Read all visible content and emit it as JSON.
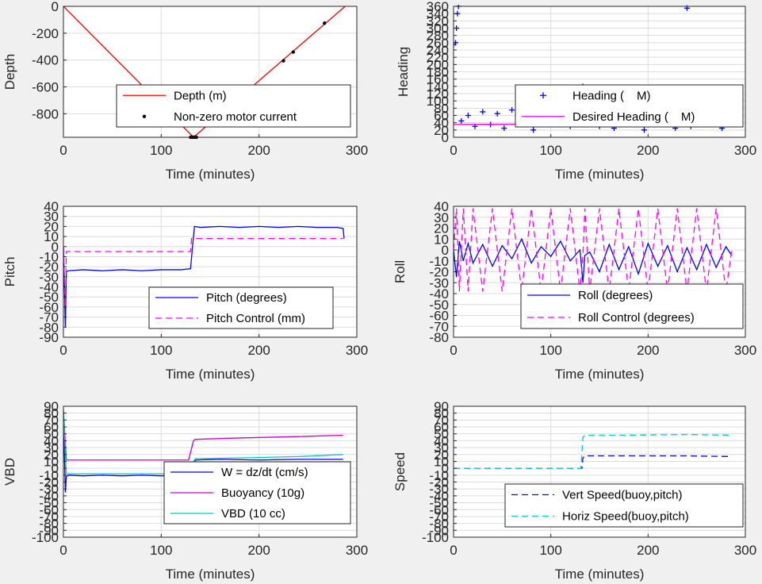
{
  "charts": [
    {
      "id": "depth",
      "type": "line",
      "xlabel": "Time (minutes)",
      "ylabel": "Depth",
      "xlim": [
        0,
        300
      ],
      "ylim": [
        -975,
        0
      ],
      "xticks": [
        0,
        100,
        200,
        300
      ],
      "yticks": [
        0,
        -200,
        -400,
        -600,
        -800
      ],
      "grid": true,
      "legend": "bottom-center",
      "series": [
        {
          "name": "Depth (m)",
          "color": "#ff0000",
          "style": "solid",
          "kind": "line",
          "x": [
            0,
            133,
            288
          ],
          "y": [
            0,
            -975,
            0
          ]
        },
        {
          "name": "Non-zero motor current",
          "color": "#000000",
          "kind": "dots",
          "x": [
            130,
            131,
            132,
            133,
            134,
            135,
            136,
            225,
            235,
            267
          ],
          "y": [
            -975,
            -975,
            -975,
            -975,
            -975,
            -975,
            -975,
            -405,
            -340,
            -125
          ]
        }
      ]
    },
    {
      "id": "heading",
      "type": "scatter",
      "xlabel": "Time (minutes)",
      "ylabel": "Heading",
      "xlim": [
        0,
        300
      ],
      "ylim": [
        0,
        360
      ],
      "xticks": [
        0,
        100,
        200,
        300
      ],
      "yticks": [
        0,
        20,
        40,
        60,
        80,
        100,
        120,
        140,
        160,
        180,
        200,
        220,
        240,
        260,
        280,
        300,
        320,
        340,
        360
      ],
      "grid": true,
      "legend": "bottom-right",
      "series": [
        {
          "name": "Heading (",
          "name_rest": "M)",
          "color": "#0000ff",
          "kind": "plus",
          "x": [
            0,
            2,
            3,
            4,
            5,
            8,
            15,
            22,
            30,
            38,
            45,
            52,
            60,
            68,
            75,
            82,
            90,
            98,
            103,
            106,
            112,
            120,
            128,
            133,
            136,
            142,
            150,
            158,
            165,
            172,
            180,
            188,
            196,
            204,
            212,
            220,
            228,
            236,
            240,
            244,
            252,
            260,
            268,
            276,
            284,
            288
          ],
          "y": [
            255,
            260,
            300,
            340,
            360,
            45,
            60,
            30,
            70,
            35,
            65,
            25,
            75,
            40,
            55,
            20,
            60,
            35,
            130,
            45,
            75,
            30,
            90,
            140,
            40,
            70,
            30,
            60,
            25,
            85,
            35,
            65,
            20,
            70,
            40,
            60,
            25,
            55,
            355,
            30,
            65,
            35,
            70,
            25,
            60,
            40
          ]
        },
        {
          "name": "Desired Heading (",
          "name_rest": "M)",
          "color": "#ff00ff",
          "kind": "line",
          "x": [
            0,
            60,
            100,
            133,
            160,
            200,
            240,
            288
          ],
          "y": [
            35,
            36,
            38,
            42,
            38,
            36,
            34,
            36
          ]
        }
      ]
    },
    {
      "id": "pitch",
      "type": "line",
      "xlabel": "Time (minutes)",
      "ylabel": "Pitch",
      "xlim": [
        0,
        300
      ],
      "ylim": [
        -90,
        40
      ],
      "xticks": [
        0,
        100,
        200,
        300
      ],
      "yticks": [
        40,
        30,
        20,
        10,
        0,
        -10,
        -20,
        -30,
        -40,
        -50,
        -60,
        -70,
        -80,
        -90
      ],
      "grid": true,
      "legend": "bottom-right",
      "series": [
        {
          "name": "Pitch (degrees)",
          "color": "#0000ff",
          "style": "solid",
          "kind": "line",
          "x": [
            0,
            1,
            2,
            3,
            5,
            20,
            40,
            60,
            80,
            100,
            120,
            130,
            132,
            134,
            140,
            160,
            180,
            200,
            220,
            240,
            260,
            280,
            286,
            287
          ],
          "y": [
            0,
            -40,
            -80,
            -25,
            -24,
            -23,
            -24,
            -23,
            -24,
            -23,
            -23,
            -22,
            0,
            20,
            19,
            20,
            19,
            20,
            19,
            20,
            19,
            19,
            18,
            8
          ]
        },
        {
          "name": "Pitch Control (mm)",
          "color": "#ff00ff",
          "style": "dash",
          "kind": "line",
          "x": [
            0,
            1,
            2,
            3,
            10,
            60,
            100,
            130,
            131,
            133,
            200,
            286
          ],
          "y": [
            0,
            -30,
            -60,
            -5,
            -5,
            -5,
            -5,
            -5,
            8,
            8,
            8,
            8
          ]
        }
      ]
    },
    {
      "id": "roll",
      "type": "line",
      "xlabel": "Time (minutes)",
      "ylabel": "Roll",
      "xlim": [
        0,
        300
      ],
      "ylim": [
        -80,
        40
      ],
      "xticks": [
        0,
        100,
        200,
        300
      ],
      "yticks": [
        40,
        30,
        20,
        10,
        0,
        -10,
        -20,
        -30,
        -40,
        -50,
        -60,
        -70,
        -80
      ],
      "grid": true,
      "legend": "bottom-right",
      "series": [
        {
          "name": "Roll (degrees)",
          "color": "#0000ff",
          "style": "solid",
          "kind": "line",
          "x": [
            0,
            3,
            6,
            10,
            15,
            20,
            30,
            40,
            50,
            60,
            70,
            80,
            90,
            100,
            110,
            120,
            130,
            133,
            135,
            140,
            150,
            160,
            170,
            180,
            190,
            200,
            210,
            220,
            230,
            240,
            250,
            260,
            270,
            280,
            286
          ],
          "y": [
            0,
            -25,
            8,
            -10,
            6,
            -12,
            5,
            -15,
            4,
            -8,
            10,
            -12,
            3,
            -6,
            8,
            -10,
            0,
            -30,
            -5,
            -2,
            -20,
            5,
            -18,
            3,
            -22,
            6,
            -15,
            4,
            -20,
            2,
            -18,
            5,
            -16,
            3,
            -5
          ]
        },
        {
          "name": "Roll Control (degrees)",
          "color": "#ff00ff",
          "style": "dash",
          "kind": "line",
          "x": [
            0,
            3,
            6,
            10,
            15,
            20,
            30,
            40,
            50,
            60,
            70,
            80,
            90,
            100,
            110,
            120,
            130,
            133,
            135,
            140,
            150,
            160,
            170,
            180,
            190,
            200,
            210,
            220,
            230,
            240,
            250,
            260,
            270,
            280,
            286
          ],
          "y": [
            0,
            38,
            -38,
            38,
            -38,
            38,
            -38,
            38,
            -38,
            38,
            -38,
            38,
            -38,
            38,
            -38,
            38,
            -38,
            -5,
            38,
            -38,
            38,
            -38,
            38,
            -38,
            38,
            -38,
            38,
            -38,
            38,
            -38,
            38,
            -38,
            38,
            -38,
            0
          ]
        }
      ]
    },
    {
      "id": "vbd",
      "type": "line",
      "xlabel": "Time (minutes)",
      "ylabel": "VBD",
      "xlim": [
        0,
        300
      ],
      "ylim": [
        -100,
        90
      ],
      "xticks": [
        0,
        100,
        200,
        300
      ],
      "yticks": [
        90,
        80,
        70,
        60,
        50,
        40,
        30,
        20,
        10,
        0,
        -10,
        -20,
        -30,
        -40,
        -50,
        -60,
        -70,
        -80,
        -90,
        -100
      ],
      "grid": true,
      "legend": "bottom-right",
      "series": [
        {
          "name": "W = dz/dt (cm/s)",
          "color": "#0000ff",
          "style": "solid",
          "kind": "line",
          "x": [
            0,
            1,
            2,
            3,
            5,
            20,
            40,
            60,
            80,
            100,
            120,
            130,
            132,
            135,
            160,
            200,
            240,
            286
          ],
          "y": [
            70,
            20,
            -35,
            -12,
            -10,
            -11,
            -10,
            -11,
            -10,
            -11,
            -10,
            -11,
            5,
            12,
            13,
            12,
            13,
            13
          ]
        },
        {
          "name": "Buoyancy (10g)",
          "color": "#cc00cc",
          "style": "solid",
          "kind": "line",
          "x": [
            0,
            1,
            3,
            5,
            60,
            100,
            128,
            133,
            135,
            180,
            240,
            286
          ],
          "y": [
            85,
            60,
            12,
            12,
            12,
            12,
            12,
            40,
            42,
            44,
            46,
            48
          ]
        },
        {
          "name": "VBD (10 cc)",
          "color": "#00cccc",
          "style": "solid",
          "kind": "line",
          "x": [
            0,
            1,
            3,
            5,
            60,
            100,
            128,
            133,
            135,
            180,
            240,
            286
          ],
          "y": [
            80,
            50,
            -8,
            -8,
            -8,
            -8,
            -8,
            10,
            14,
            15,
            17,
            20
          ]
        }
      ]
    },
    {
      "id": "speed",
      "type": "line",
      "xlabel": "Time (minutes)",
      "ylabel": "Speed",
      "xlim": [
        0,
        300
      ],
      "ylim": [
        -100,
        90
      ],
      "xticks": [
        0,
        100,
        200,
        300
      ],
      "yticks": [
        90,
        80,
        70,
        60,
        50,
        40,
        30,
        20,
        10,
        0,
        -10,
        -20,
        -30,
        -40,
        -50,
        -60,
        -70,
        -80,
        -90,
        -100
      ],
      "grid": true,
      "legend": "bottom-right",
      "series": [
        {
          "name": "Vert Speed(buoy,pitch)",
          "color": "#0000ff",
          "style": "dash",
          "kind": "line",
          "x": [
            0,
            132,
            133,
            135,
            180,
            240,
            286
          ],
          "y": [
            0,
            0,
            15,
            18,
            18,
            18,
            17
          ]
        },
        {
          "name": "Horiz Speed(buoy,pitch)",
          "color": "#00cccc",
          "style": "dash",
          "kind": "line",
          "x": [
            0,
            100,
            131,
            133,
            135,
            180,
            240,
            286
          ],
          "y": [
            0,
            0,
            0,
            45,
            48,
            48,
            49,
            48
          ]
        }
      ]
    }
  ]
}
